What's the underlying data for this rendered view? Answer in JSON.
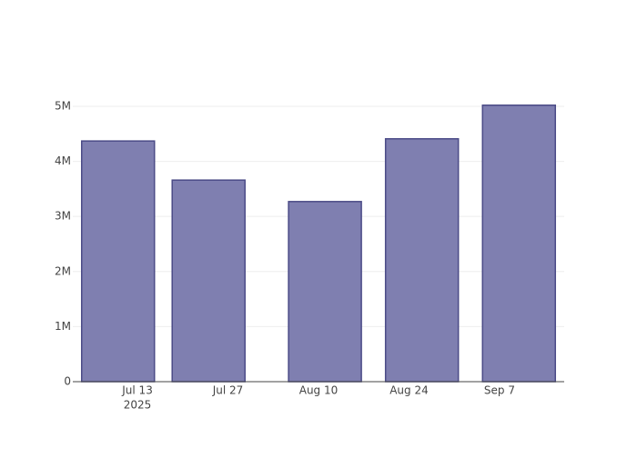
{
  "chart_data": {
    "type": "bar",
    "x": [
      "2025-07-10",
      "2025-07-24",
      "2025-08-11",
      "2025-08-26",
      "2025-09-10"
    ],
    "values": [
      4370000,
      3660000,
      3270000,
      4410000,
      5020000
    ],
    "color": "#7f7fb0",
    "line_color": "#4b4b87",
    "xlim": [
      "2025-07-03",
      "2025-09-17"
    ],
    "xticks": [
      {
        "value": "2025-07-13",
        "label": "Jul 13",
        "sublabel": "2025"
      },
      {
        "value": "2025-07-27",
        "label": "Jul 27"
      },
      {
        "value": "2025-08-10",
        "label": "Aug 10"
      },
      {
        "value": "2025-08-24",
        "label": "Aug 24"
      },
      {
        "value": "2025-09-07",
        "label": "Sep 7"
      }
    ],
    "ylim": [
      0,
      5280000
    ],
    "yticks": [
      0,
      {
        "value": 1000000,
        "label": "1M"
      },
      {
        "value": 2000000,
        "label": "2M"
      },
      {
        "value": 3000000,
        "label": "3M"
      },
      {
        "value": 4000000,
        "label": "4M"
      },
      {
        "value": 5000000,
        "label": "5M"
      }
    ],
    "grid": true
  }
}
